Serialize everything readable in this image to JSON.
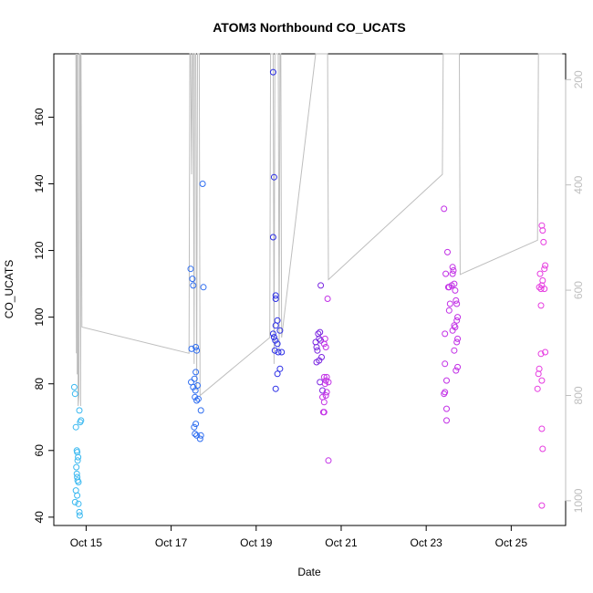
{
  "chart_data": {
    "type": "scatter",
    "title": "ATOM3 Northbound CO_UCATS",
    "xlabel": "Date",
    "ylabel": "CO_UCATS",
    "x_ticks": [
      "Oct 15",
      "Oct 17",
      "Oct 19",
      "Oct 21",
      "Oct 23",
      "Oct 25"
    ],
    "x_tick_days": [
      15,
      17,
      19,
      21,
      23,
      25
    ],
    "xlim_days": [
      14.24,
      26.28
    ],
    "ylim": [
      37.5,
      179.0
    ],
    "y_ticks": [
      40,
      60,
      80,
      100,
      120,
      140,
      160
    ],
    "secondary_axis": {
      "label": "",
      "ticks": [
        200,
        400,
        600,
        800,
        1000
      ],
      "ylim": [
        1047,
        151
      ],
      "color": "#bebebe",
      "series": "Pressure trace (gray line, reversed axis)"
    },
    "grid": false,
    "legend": "none",
    "point_colors": [
      "#39b8f0",
      "#2f6ef0",
      "#2b2ee6",
      "#7a26e0",
      "#c230e6",
      "#e63ce0"
    ],
    "line_color": "#bebebe",
    "series": [
      {
        "color": "#39b8f0",
        "points": [
          [
            14.72,
            79
          ],
          [
            14.74,
            77
          ],
          [
            14.76,
            67
          ],
          [
            14.78,
            60
          ],
          [
            14.79,
            59.5
          ],
          [
            14.8,
            57
          ],
          [
            14.81,
            58
          ],
          [
            14.77,
            55
          ],
          [
            14.78,
            53
          ],
          [
            14.79,
            52
          ],
          [
            14.8,
            51
          ],
          [
            14.82,
            50.5
          ],
          [
            14.76,
            48
          ],
          [
            14.79,
            46.5
          ],
          [
            14.82,
            44
          ],
          [
            14.74,
            44.5
          ],
          [
            14.84,
            41.5
          ],
          [
            14.85,
            40.5
          ],
          [
            14.86,
            68.5
          ],
          [
            14.88,
            69
          ],
          [
            14.84,
            72
          ]
        ]
      },
      {
        "color": "#2f6ef0",
        "points": [
          [
            17.46,
            114.5
          ],
          [
            17.5,
            111.5
          ],
          [
            17.52,
            109.5
          ],
          [
            17.48,
            90.5
          ],
          [
            17.58,
            91
          ],
          [
            17.6,
            90
          ],
          [
            17.47,
            80.5
          ],
          [
            17.55,
            81.5
          ],
          [
            17.52,
            79
          ],
          [
            17.57,
            78
          ],
          [
            17.62,
            79.5
          ],
          [
            17.56,
            76
          ],
          [
            17.6,
            75
          ],
          [
            17.64,
            75.5
          ],
          [
            17.58,
            68
          ],
          [
            17.54,
            67
          ],
          [
            17.56,
            65
          ],
          [
            17.6,
            64.5
          ],
          [
            17.68,
            63.5
          ],
          [
            17.7,
            64.5
          ],
          [
            17.7,
            72
          ],
          [
            17.74,
            140
          ],
          [
            17.76,
            109
          ],
          [
            17.58,
            83.5
          ]
        ]
      },
      {
        "color": "#2b2ee6",
        "points": [
          [
            19.4,
            173.5
          ],
          [
            19.42,
            142
          ],
          [
            19.4,
            124
          ],
          [
            19.46,
            106.5
          ],
          [
            19.46,
            105.5
          ],
          [
            19.5,
            99
          ],
          [
            19.56,
            96
          ],
          [
            19.46,
            97.5
          ],
          [
            19.4,
            95
          ],
          [
            19.42,
            94
          ],
          [
            19.45,
            93
          ],
          [
            19.5,
            92
          ],
          [
            19.44,
            90
          ],
          [
            19.52,
            89.5
          ],
          [
            19.6,
            89.5
          ],
          [
            19.56,
            84.5
          ],
          [
            19.5,
            83
          ],
          [
            19.46,
            78.5
          ]
        ]
      },
      {
        "color": "#7a26e0",
        "points": [
          [
            20.4,
            92.5
          ],
          [
            20.42,
            91
          ],
          [
            20.44,
            90
          ],
          [
            20.48,
            93.5
          ],
          [
            20.46,
            95
          ],
          [
            20.5,
            95.5
          ],
          [
            20.52,
            93
          ],
          [
            20.54,
            88
          ],
          [
            20.42,
            86.5
          ],
          [
            20.48,
            87
          ],
          [
            20.52,
            109.5
          ],
          [
            20.5,
            80.5
          ],
          [
            20.56,
            78
          ]
        ]
      },
      {
        "color": "#c230e6",
        "points": [
          [
            20.6,
            92
          ],
          [
            20.62,
            93.5
          ],
          [
            20.64,
            91
          ],
          [
            20.6,
            82
          ],
          [
            20.62,
            80
          ],
          [
            20.64,
            81
          ],
          [
            20.66,
            82
          ],
          [
            20.7,
            80.5
          ],
          [
            20.56,
            76
          ],
          [
            20.6,
            74.5
          ],
          [
            20.64,
            76.5
          ],
          [
            20.66,
            77.5
          ],
          [
            20.58,
            71.5
          ],
          [
            20.6,
            71.5
          ],
          [
            20.68,
            105.5
          ],
          [
            20.7,
            57
          ]
        ]
      },
      {
        "color": "#c230e6",
        "points": [
          [
            23.42,
            132.5
          ],
          [
            23.5,
            119.5
          ],
          [
            23.46,
            113
          ],
          [
            23.52,
            109
          ],
          [
            23.54,
            109
          ],
          [
            23.6,
            109.5
          ],
          [
            23.56,
            104
          ],
          [
            23.54,
            102
          ],
          [
            23.62,
            115
          ],
          [
            23.64,
            114
          ],
          [
            23.66,
            110
          ],
          [
            23.68,
            108
          ],
          [
            23.72,
            104
          ],
          [
            23.74,
            100
          ],
          [
            23.72,
            99
          ],
          [
            23.68,
            97
          ],
          [
            23.66,
            97.5
          ],
          [
            23.62,
            96
          ],
          [
            23.44,
            95
          ],
          [
            23.74,
            93.5
          ],
          [
            23.72,
            92.5
          ],
          [
            23.66,
            90
          ],
          [
            23.7,
            84
          ],
          [
            23.74,
            85
          ],
          [
            23.44,
            86
          ],
          [
            23.48,
            81
          ],
          [
            23.42,
            77
          ],
          [
            23.44,
            77.5
          ],
          [
            23.48,
            72.5
          ],
          [
            23.48,
            69
          ],
          [
            23.62,
            113
          ],
          [
            23.7,
            105
          ]
        ]
      },
      {
        "color": "#e63ce0",
        "points": [
          [
            25.72,
            127.5
          ],
          [
            25.74,
            126
          ],
          [
            25.76,
            122.5
          ],
          [
            25.8,
            115.5
          ],
          [
            25.78,
            114.5
          ],
          [
            25.68,
            113
          ],
          [
            25.74,
            111
          ],
          [
            25.72,
            109.5
          ],
          [
            25.66,
            109
          ],
          [
            25.7,
            108.5
          ],
          [
            25.78,
            108.5
          ],
          [
            25.7,
            103.5
          ],
          [
            25.7,
            89
          ],
          [
            25.8,
            89.5
          ],
          [
            25.66,
            84.5
          ],
          [
            25.64,
            83
          ],
          [
            25.72,
            81
          ],
          [
            25.62,
            78.5
          ],
          [
            25.72,
            66.5
          ],
          [
            25.74,
            60.5
          ],
          [
            25.72,
            43.5
          ]
        ]
      }
    ],
    "pressure_path": [
      [
        14.76,
        151
      ],
      [
        14.77,
        720
      ],
      [
        14.78,
        151
      ],
      [
        14.79,
        760
      ],
      [
        14.8,
        151
      ],
      [
        14.81,
        820
      ],
      [
        14.83,
        800
      ],
      [
        14.84,
        151
      ],
      [
        14.86,
        151
      ],
      [
        14.87,
        820
      ],
      [
        14.88,
        151
      ],
      [
        14.9,
        670
      ],
      [
        17.42,
        720
      ],
      [
        17.44,
        151
      ],
      [
        17.46,
        151
      ],
      [
        17.48,
        380
      ],
      [
        17.5,
        151
      ],
      [
        17.52,
        151
      ],
      [
        17.54,
        740
      ],
      [
        17.55,
        151
      ],
      [
        17.56,
        151
      ],
      [
        17.58,
        151
      ],
      [
        17.6,
        790
      ],
      [
        17.62,
        151
      ],
      [
        17.64,
        151
      ],
      [
        17.66,
        151
      ],
      [
        17.68,
        800
      ],
      [
        19.32,
        690
      ],
      [
        19.34,
        151
      ],
      [
        19.36,
        151
      ],
      [
        19.38,
        151
      ],
      [
        19.4,
        151
      ],
      [
        19.42,
        740
      ],
      [
        19.44,
        151
      ],
      [
        19.46,
        151
      ],
      [
        19.48,
        151
      ],
      [
        19.5,
        151
      ],
      [
        19.52,
        151
      ],
      [
        19.54,
        720
      ],
      [
        19.56,
        151
      ],
      [
        19.58,
        151
      ],
      [
        19.6,
        690
      ],
      [
        20.4,
        151
      ],
      [
        20.42,
        151
      ],
      [
        20.44,
        151
      ],
      [
        20.46,
        151
      ],
      [
        20.48,
        151
      ],
      [
        20.5,
        151
      ],
      [
        20.52,
        151
      ],
      [
        20.54,
        151
      ],
      [
        20.56,
        151
      ],
      [
        20.58,
        151
      ],
      [
        20.6,
        151
      ],
      [
        20.62,
        151
      ],
      [
        20.64,
        151
      ],
      [
        20.66,
        151
      ],
      [
        20.68,
        151
      ],
      [
        20.7,
        580
      ],
      [
        23.38,
        380
      ],
      [
        23.4,
        151
      ],
      [
        23.42,
        151
      ],
      [
        23.44,
        151
      ],
      [
        23.46,
        151
      ],
      [
        23.48,
        151
      ],
      [
        23.5,
        151
      ],
      [
        23.52,
        151
      ],
      [
        23.54,
        151
      ],
      [
        23.56,
        151
      ],
      [
        23.58,
        151
      ],
      [
        23.6,
        151
      ],
      [
        23.62,
        151
      ],
      [
        23.64,
        151
      ],
      [
        23.66,
        151
      ],
      [
        23.68,
        151
      ],
      [
        23.7,
        151
      ],
      [
        23.72,
        151
      ],
      [
        23.74,
        151
      ],
      [
        23.76,
        151
      ],
      [
        23.78,
        151
      ],
      [
        23.8,
        570
      ],
      [
        25.62,
        505
      ],
      [
        25.64,
        151
      ],
      [
        25.66,
        151
      ],
      [
        25.68,
        151
      ],
      [
        25.7,
        151
      ],
      [
        25.72,
        151
      ],
      [
        25.74,
        151
      ],
      [
        25.76,
        151
      ],
      [
        25.78,
        151
      ],
      [
        25.8,
        151
      ],
      [
        25.82,
        151
      ],
      [
        25.84,
        151
      ],
      [
        25.86,
        151
      ],
      [
        25.88,
        151
      ],
      [
        25.9,
        151
      ],
      [
        25.92,
        151
      ],
      [
        25.94,
        151
      ],
      [
        25.96,
        151
      ],
      [
        25.98,
        151
      ],
      [
        26.0,
        151
      ],
      [
        26.02,
        151
      ],
      [
        26.04,
        151
      ],
      [
        26.06,
        151
      ],
      [
        26.08,
        151
      ],
      [
        26.1,
        151
      ],
      [
        26.12,
        151
      ],
      [
        26.14,
        151
      ],
      [
        26.16,
        151
      ],
      [
        26.18,
        151
      ],
      [
        26.2,
        151
      ]
    ]
  }
}
